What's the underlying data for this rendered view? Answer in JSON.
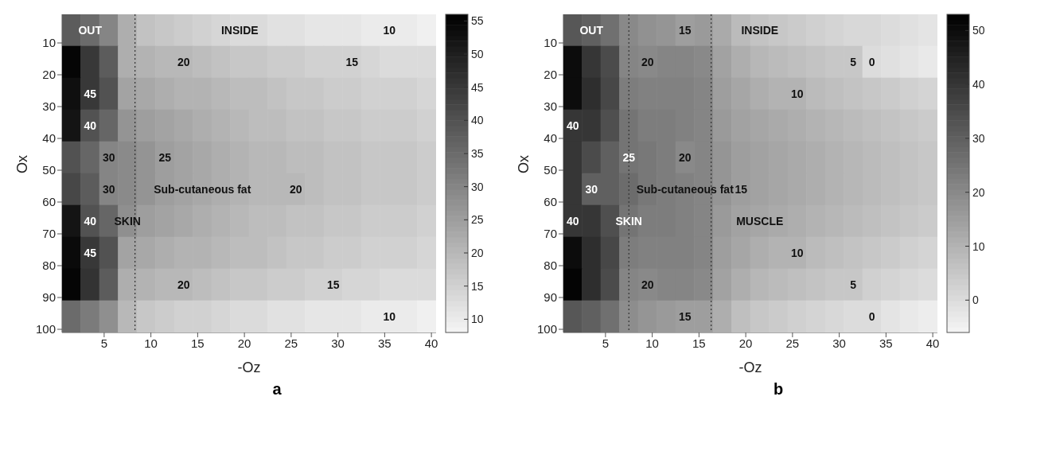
{
  "chart_data": [
    {
      "type": "heatmap",
      "title": "a",
      "xlabel": "-Oz",
      "ylabel": "Ox",
      "x": [
        1.5,
        3.5,
        5.5,
        7.5,
        9.5,
        11.5,
        13.5,
        15.5,
        17.5,
        19.5,
        21.5,
        23.5,
        25.5,
        27.5,
        29.5,
        31.5,
        33.5,
        35.5,
        37.5,
        39.5
      ],
      "xlim": [
        0.5,
        40.5
      ],
      "xticks": [
        5,
        10,
        15,
        20,
        25,
        30,
        35,
        40
      ],
      "ylim": [
        101,
        1
      ],
      "yticks": [
        10,
        20,
        30,
        40,
        50,
        60,
        70,
        80,
        90,
        100
      ],
      "clim": [
        8,
        56
      ],
      "cticks": [
        10,
        15,
        20,
        25,
        30,
        35,
        40,
        45,
        50,
        55
      ],
      "cells": [
        [
          38,
          35,
          30,
          22,
          18,
          17,
          16,
          15,
          14,
          13,
          13,
          12,
          12,
          11,
          11,
          11,
          10,
          10,
          10,
          9
        ],
        [
          55,
          45,
          38,
          22,
          21,
          20,
          20,
          19,
          18,
          17,
          17,
          16,
          16,
          15,
          15,
          15,
          14,
          13,
          13,
          13
        ],
        [
          53,
          45,
          40,
          24,
          23,
          22,
          21,
          21,
          20,
          19,
          19,
          18,
          17,
          17,
          16,
          16,
          15,
          15,
          15,
          14
        ],
        [
          52,
          40,
          36,
          27,
          25,
          24,
          23,
          22,
          21,
          20,
          19,
          19,
          18,
          18,
          17,
          17,
          16,
          16,
          16,
          15
        ],
        [
          40,
          36,
          30,
          29,
          27,
          25,
          24,
          23,
          22,
          21,
          20,
          20,
          19,
          19,
          18,
          18,
          17,
          17,
          17,
          16
        ],
        [
          42,
          38,
          30,
          29,
          27,
          25,
          24,
          23,
          22,
          21,
          20,
          20,
          20,
          19,
          18,
          18,
          17,
          17,
          17,
          16
        ],
        [
          52,
          40,
          36,
          28,
          25,
          24,
          23,
          22,
          21,
          20,
          19,
          19,
          18,
          18,
          17,
          17,
          16,
          16,
          16,
          15
        ],
        [
          54,
          45,
          40,
          24,
          23,
          22,
          21,
          21,
          20,
          19,
          19,
          18,
          17,
          17,
          16,
          16,
          15,
          15,
          15,
          14
        ],
        [
          55,
          46,
          38,
          22,
          21,
          20,
          20,
          19,
          18,
          17,
          17,
          16,
          16,
          15,
          15,
          14,
          14,
          13,
          13,
          13
        ],
        [
          35,
          32,
          28,
          20,
          17,
          16,
          15,
          15,
          14,
          13,
          13,
          12,
          12,
          11,
          11,
          11,
          10,
          10,
          10,
          9
        ]
      ],
      "cell_labels": [
        [
          null,
          "OUT",
          null,
          null,
          null,
          null,
          null,
          null,
          null,
          "INSIDE",
          null,
          null,
          null,
          null,
          null,
          null,
          null,
          "10",
          null,
          null
        ],
        [
          null,
          null,
          null,
          null,
          null,
          null,
          "20",
          null,
          null,
          null,
          null,
          null,
          null,
          null,
          null,
          "15",
          null,
          null,
          null,
          null
        ],
        [
          null,
          "45",
          null,
          null,
          null,
          null,
          null,
          null,
          null,
          null,
          null,
          null,
          null,
          null,
          null,
          null,
          null,
          null,
          null,
          null
        ],
        [
          null,
          "40",
          null,
          null,
          null,
          null,
          null,
          null,
          null,
          null,
          null,
          null,
          null,
          null,
          null,
          null,
          null,
          null,
          null,
          null
        ],
        [
          null,
          null,
          "30",
          null,
          null,
          "25",
          null,
          null,
          null,
          null,
          null,
          null,
          null,
          null,
          null,
          null,
          null,
          null,
          null,
          null
        ],
        [
          null,
          null,
          "30",
          null,
          null,
          null,
          null,
          "Sub-cutaneous fat",
          null,
          null,
          null,
          null,
          "20",
          null,
          null,
          null,
          null,
          null,
          null,
          null
        ],
        [
          null,
          "40",
          null,
          "SKIN",
          null,
          null,
          null,
          null,
          null,
          null,
          null,
          null,
          null,
          null,
          null,
          null,
          null,
          null,
          null,
          null
        ],
        [
          null,
          "45",
          null,
          null,
          null,
          null,
          null,
          null,
          null,
          null,
          null,
          null,
          null,
          null,
          null,
          null,
          null,
          null,
          null,
          null
        ],
        [
          null,
          null,
          null,
          null,
          null,
          null,
          "20",
          null,
          null,
          null,
          null,
          null,
          null,
          null,
          "15",
          null,
          null,
          null,
          null,
          null
        ],
        [
          null,
          null,
          null,
          null,
          null,
          null,
          null,
          null,
          null,
          null,
          null,
          null,
          null,
          null,
          null,
          null,
          null,
          "10",
          null,
          null
        ]
      ],
      "ref_lines": [
        {
          "axis": "x",
          "value": 8.3,
          "line_style": "dotted"
        }
      ]
    },
    {
      "type": "heatmap",
      "title": "b",
      "xlabel": "-Oz",
      "ylabel": "Ox",
      "x": [
        1.5,
        3.5,
        5.5,
        7.5,
        9.5,
        11.5,
        13.5,
        15.5,
        17.5,
        19.5,
        21.5,
        23.5,
        25.5,
        27.5,
        29.5,
        31.5,
        33.5,
        35.5,
        37.5,
        39.5
      ],
      "xlim": [
        0.5,
        40.5
      ],
      "xticks": [
        5,
        10,
        15,
        20,
        25,
        30,
        35,
        40
      ],
      "ylim": [
        101,
        1
      ],
      "yticks": [
        10,
        20,
        30,
        40,
        50,
        60,
        70,
        80,
        90,
        100
      ],
      "clim": [
        -6,
        53
      ],
      "cticks": [
        0,
        10,
        20,
        30,
        40,
        50
      ],
      "cells": [
        [
          32,
          30,
          26,
          20,
          18,
          17,
          15,
          16,
          12,
          8,
          6,
          5,
          4,
          3,
          2,
          1,
          1,
          0,
          -1,
          -2
        ],
        [
          50,
          40,
          35,
          21,
          20,
          21,
          21,
          20,
          14,
          11,
          9,
          8,
          7,
          6,
          5,
          5,
          0,
          -1,
          -2,
          -3
        ],
        [
          50,
          42,
          36,
          23,
          22,
          22,
          22,
          21,
          15,
          13,
          11,
          10,
          10,
          8,
          7,
          6,
          5,
          4,
          3,
          2
        ],
        [
          40,
          40,
          34,
          25,
          23,
          23,
          22,
          21,
          16,
          14,
          13,
          12,
          11,
          10,
          9,
          8,
          7,
          6,
          5,
          4
        ],
        [
          40,
          35,
          30,
          25,
          24,
          23,
          20,
          21,
          17,
          15,
          14,
          13,
          12,
          11,
          10,
          9,
          8,
          7,
          6,
          5
        ],
        [
          40,
          30,
          30,
          27,
          24,
          23,
          22,
          21,
          17,
          15,
          14,
          13,
          12,
          11,
          10,
          9,
          8,
          7,
          6,
          5
        ],
        [
          40,
          40,
          34,
          25,
          23,
          23,
          22,
          21,
          16,
          14,
          13,
          12,
          11,
          10,
          9,
          8,
          7,
          6,
          5,
          4
        ],
        [
          50,
          42,
          36,
          23,
          22,
          22,
          22,
          21,
          15,
          13,
          11,
          10,
          10,
          8,
          7,
          6,
          5,
          4,
          3,
          2
        ],
        [
          52,
          42,
          35,
          21,
          20,
          21,
          21,
          20,
          14,
          11,
          9,
          8,
          7,
          6,
          5,
          5,
          3,
          2,
          1,
          0
        ],
        [
          32,
          30,
          26,
          19,
          17,
          16,
          15,
          15,
          11,
          7,
          5,
          4,
          3,
          2,
          1,
          0,
          0,
          -2,
          -3,
          -4
        ]
      ],
      "cell_labels": [
        [
          null,
          "OUT",
          null,
          null,
          null,
          null,
          "15",
          null,
          null,
          null,
          "INSIDE",
          null,
          null,
          null,
          null,
          null,
          null,
          null,
          null,
          null
        ],
        [
          null,
          null,
          null,
          null,
          "20",
          null,
          null,
          null,
          null,
          null,
          null,
          null,
          null,
          null,
          null,
          "5",
          "0",
          null,
          null,
          null
        ],
        [
          null,
          null,
          null,
          null,
          null,
          null,
          null,
          null,
          null,
          null,
          null,
          null,
          "10",
          null,
          null,
          null,
          null,
          null,
          null,
          null
        ],
        [
          "40",
          null,
          null,
          null,
          null,
          null,
          null,
          null,
          null,
          null,
          null,
          null,
          null,
          null,
          null,
          null,
          null,
          null,
          null,
          null
        ],
        [
          null,
          null,
          null,
          "25",
          null,
          null,
          "20",
          null,
          null,
          null,
          null,
          null,
          null,
          null,
          null,
          null,
          null,
          null,
          null,
          null
        ],
        [
          null,
          "30",
          null,
          null,
          null,
          null,
          "Sub-cutaneous fat",
          null,
          null,
          "15",
          null,
          null,
          null,
          null,
          null,
          null,
          null,
          null,
          null,
          null
        ],
        [
          "40",
          null,
          null,
          "SKIN",
          null,
          null,
          null,
          null,
          null,
          null,
          "MUSCLE",
          null,
          null,
          null,
          null,
          null,
          null,
          null,
          null,
          null
        ],
        [
          null,
          null,
          null,
          null,
          null,
          null,
          null,
          null,
          null,
          null,
          null,
          null,
          "10",
          null,
          null,
          null,
          null,
          null,
          null,
          null
        ],
        [
          null,
          null,
          null,
          null,
          "20",
          null,
          null,
          null,
          null,
          null,
          null,
          null,
          null,
          null,
          null,
          "5",
          null,
          null,
          null,
          null
        ],
        [
          null,
          null,
          null,
          null,
          null,
          null,
          "15",
          null,
          null,
          null,
          null,
          null,
          null,
          null,
          null,
          null,
          "0",
          null,
          null,
          null
        ]
      ],
      "ref_lines": [
        {
          "axis": "x",
          "value": 7.5,
          "line_style": "dotted"
        },
        {
          "axis": "x",
          "value": 16.3,
          "line_style": "dotted"
        }
      ]
    }
  ]
}
